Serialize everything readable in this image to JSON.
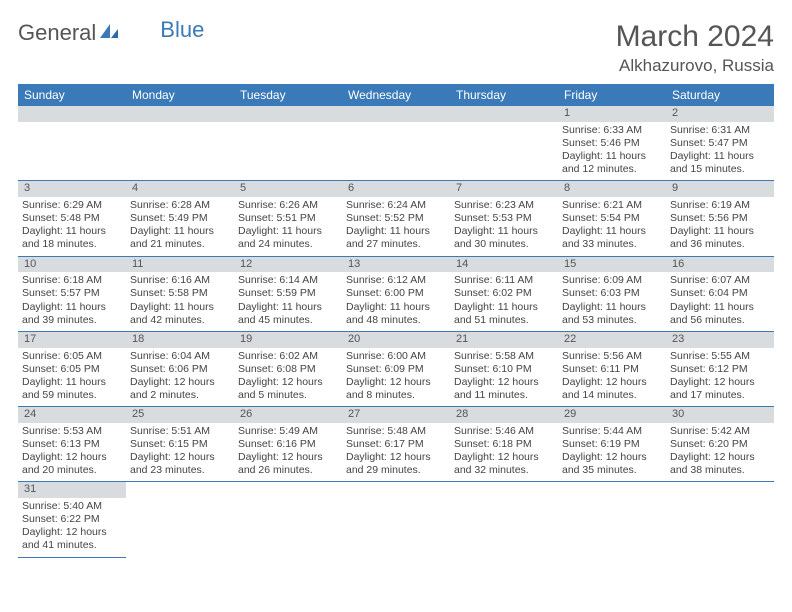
{
  "logo": {
    "general": "General",
    "blue": "Blue"
  },
  "title": "March 2024",
  "location": "Alkhazurovo, Russia",
  "colors": {
    "header_bg": "#3a7ab8",
    "header_text": "#ffffff",
    "daynum_bg": "#d9dcdf",
    "border": "#3a7ab8",
    "text": "#444444",
    "background": "#ffffff"
  },
  "weekdays": [
    "Sunday",
    "Monday",
    "Tuesday",
    "Wednesday",
    "Thursday",
    "Friday",
    "Saturday"
  ],
  "weeks": [
    [
      null,
      null,
      null,
      null,
      null,
      {
        "n": "1",
        "sr": "Sunrise: 6:33 AM",
        "ss": "Sunset: 5:46 PM",
        "d1": "Daylight: 11 hours",
        "d2": "and 12 minutes."
      },
      {
        "n": "2",
        "sr": "Sunrise: 6:31 AM",
        "ss": "Sunset: 5:47 PM",
        "d1": "Daylight: 11 hours",
        "d2": "and 15 minutes."
      }
    ],
    [
      {
        "n": "3",
        "sr": "Sunrise: 6:29 AM",
        "ss": "Sunset: 5:48 PM",
        "d1": "Daylight: 11 hours",
        "d2": "and 18 minutes."
      },
      {
        "n": "4",
        "sr": "Sunrise: 6:28 AM",
        "ss": "Sunset: 5:49 PM",
        "d1": "Daylight: 11 hours",
        "d2": "and 21 minutes."
      },
      {
        "n": "5",
        "sr": "Sunrise: 6:26 AM",
        "ss": "Sunset: 5:51 PM",
        "d1": "Daylight: 11 hours",
        "d2": "and 24 minutes."
      },
      {
        "n": "6",
        "sr": "Sunrise: 6:24 AM",
        "ss": "Sunset: 5:52 PM",
        "d1": "Daylight: 11 hours",
        "d2": "and 27 minutes."
      },
      {
        "n": "7",
        "sr": "Sunrise: 6:23 AM",
        "ss": "Sunset: 5:53 PM",
        "d1": "Daylight: 11 hours",
        "d2": "and 30 minutes."
      },
      {
        "n": "8",
        "sr": "Sunrise: 6:21 AM",
        "ss": "Sunset: 5:54 PM",
        "d1": "Daylight: 11 hours",
        "d2": "and 33 minutes."
      },
      {
        "n": "9",
        "sr": "Sunrise: 6:19 AM",
        "ss": "Sunset: 5:56 PM",
        "d1": "Daylight: 11 hours",
        "d2": "and 36 minutes."
      }
    ],
    [
      {
        "n": "10",
        "sr": "Sunrise: 6:18 AM",
        "ss": "Sunset: 5:57 PM",
        "d1": "Daylight: 11 hours",
        "d2": "and 39 minutes."
      },
      {
        "n": "11",
        "sr": "Sunrise: 6:16 AM",
        "ss": "Sunset: 5:58 PM",
        "d1": "Daylight: 11 hours",
        "d2": "and 42 minutes."
      },
      {
        "n": "12",
        "sr": "Sunrise: 6:14 AM",
        "ss": "Sunset: 5:59 PM",
        "d1": "Daylight: 11 hours",
        "d2": "and 45 minutes."
      },
      {
        "n": "13",
        "sr": "Sunrise: 6:12 AM",
        "ss": "Sunset: 6:00 PM",
        "d1": "Daylight: 11 hours",
        "d2": "and 48 minutes."
      },
      {
        "n": "14",
        "sr": "Sunrise: 6:11 AM",
        "ss": "Sunset: 6:02 PM",
        "d1": "Daylight: 11 hours",
        "d2": "and 51 minutes."
      },
      {
        "n": "15",
        "sr": "Sunrise: 6:09 AM",
        "ss": "Sunset: 6:03 PM",
        "d1": "Daylight: 11 hours",
        "d2": "and 53 minutes."
      },
      {
        "n": "16",
        "sr": "Sunrise: 6:07 AM",
        "ss": "Sunset: 6:04 PM",
        "d1": "Daylight: 11 hours",
        "d2": "and 56 minutes."
      }
    ],
    [
      {
        "n": "17",
        "sr": "Sunrise: 6:05 AM",
        "ss": "Sunset: 6:05 PM",
        "d1": "Daylight: 11 hours",
        "d2": "and 59 minutes."
      },
      {
        "n": "18",
        "sr": "Sunrise: 6:04 AM",
        "ss": "Sunset: 6:06 PM",
        "d1": "Daylight: 12 hours",
        "d2": "and 2 minutes."
      },
      {
        "n": "19",
        "sr": "Sunrise: 6:02 AM",
        "ss": "Sunset: 6:08 PM",
        "d1": "Daylight: 12 hours",
        "d2": "and 5 minutes."
      },
      {
        "n": "20",
        "sr": "Sunrise: 6:00 AM",
        "ss": "Sunset: 6:09 PM",
        "d1": "Daylight: 12 hours",
        "d2": "and 8 minutes."
      },
      {
        "n": "21",
        "sr": "Sunrise: 5:58 AM",
        "ss": "Sunset: 6:10 PM",
        "d1": "Daylight: 12 hours",
        "d2": "and 11 minutes."
      },
      {
        "n": "22",
        "sr": "Sunrise: 5:56 AM",
        "ss": "Sunset: 6:11 PM",
        "d1": "Daylight: 12 hours",
        "d2": "and 14 minutes."
      },
      {
        "n": "23",
        "sr": "Sunrise: 5:55 AM",
        "ss": "Sunset: 6:12 PM",
        "d1": "Daylight: 12 hours",
        "d2": "and 17 minutes."
      }
    ],
    [
      {
        "n": "24",
        "sr": "Sunrise: 5:53 AM",
        "ss": "Sunset: 6:13 PM",
        "d1": "Daylight: 12 hours",
        "d2": "and 20 minutes."
      },
      {
        "n": "25",
        "sr": "Sunrise: 5:51 AM",
        "ss": "Sunset: 6:15 PM",
        "d1": "Daylight: 12 hours",
        "d2": "and 23 minutes."
      },
      {
        "n": "26",
        "sr": "Sunrise: 5:49 AM",
        "ss": "Sunset: 6:16 PM",
        "d1": "Daylight: 12 hours",
        "d2": "and 26 minutes."
      },
      {
        "n": "27",
        "sr": "Sunrise: 5:48 AM",
        "ss": "Sunset: 6:17 PM",
        "d1": "Daylight: 12 hours",
        "d2": "and 29 minutes."
      },
      {
        "n": "28",
        "sr": "Sunrise: 5:46 AM",
        "ss": "Sunset: 6:18 PM",
        "d1": "Daylight: 12 hours",
        "d2": "and 32 minutes."
      },
      {
        "n": "29",
        "sr": "Sunrise: 5:44 AM",
        "ss": "Sunset: 6:19 PM",
        "d1": "Daylight: 12 hours",
        "d2": "and 35 minutes."
      },
      {
        "n": "30",
        "sr": "Sunrise: 5:42 AM",
        "ss": "Sunset: 6:20 PM",
        "d1": "Daylight: 12 hours",
        "d2": "and 38 minutes."
      }
    ],
    [
      {
        "n": "31",
        "sr": "Sunrise: 5:40 AM",
        "ss": "Sunset: 6:22 PM",
        "d1": "Daylight: 12 hours",
        "d2": "and 41 minutes."
      },
      null,
      null,
      null,
      null,
      null,
      null
    ]
  ]
}
